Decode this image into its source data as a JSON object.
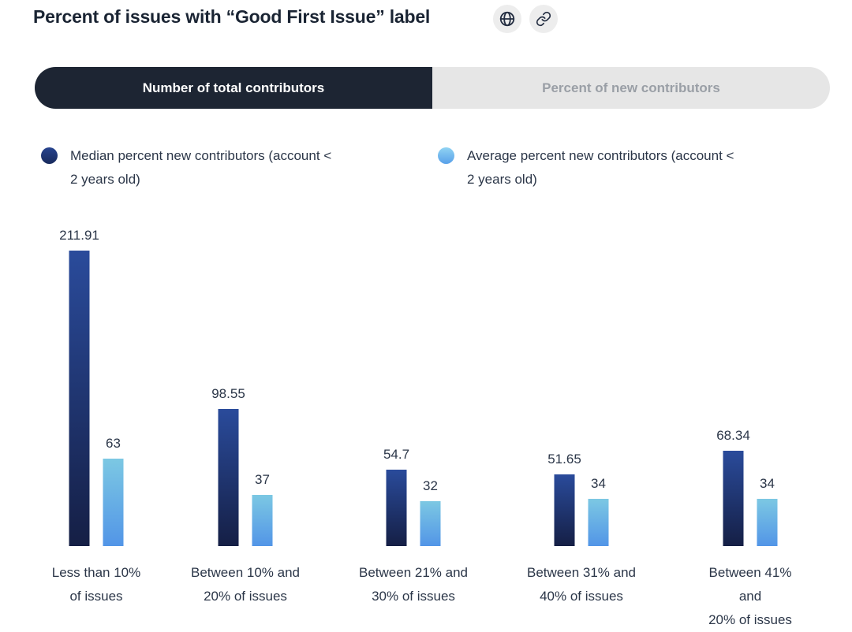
{
  "header": {
    "title": "Percent of issues with “Good First Issue” label",
    "buttons": [
      {
        "icon": "globe-icon"
      },
      {
        "icon": "link-icon"
      }
    ]
  },
  "tabs": {
    "items": [
      {
        "label": "Number of total contributors",
        "selected": true
      },
      {
        "label": "Percent of new contributors",
        "selected": false
      }
    ]
  },
  "legend": {
    "items": [
      {
        "label": "Median percent new contributors (account < 2 years old)",
        "label_lines": [
          "Median percent new contributors (account <",
          "2 years old)"
        ],
        "color": "#1d3a7e"
      },
      {
        "label": "Average percent new contributors (account < 2 years old)",
        "label_lines": [
          "Average percent new contributors (account <",
          "2 years old)"
        ],
        "color": "#6fc0ee"
      }
    ]
  },
  "theme": {
    "tab_selected_bg": "#1d2533",
    "tab_unselected_bg": "#e6e6e6",
    "tab_unselected_text": "#9a9fa6",
    "text_color": "#2b3648",
    "icon_button_bg": "#ededed"
  },
  "chart_data": {
    "type": "bar",
    "title": "Percent of issues with “Good First Issue” label",
    "categories": [
      "Less than 10% of issues",
      "Between 10% and 20% of issues",
      "Between 21% and 30% of issues",
      "Between 31% and 40% of issues",
      "Between 41% and 20% of issues"
    ],
    "category_lines": [
      [
        "Less than 10%",
        "of issues"
      ],
      [
        "Between 10% and",
        "20% of issues"
      ],
      [
        "Between 21% and",
        "30% of issues"
      ],
      [
        "Between 31% and",
        "40% of issues"
      ],
      [
        "Between 41% and",
        "20% of issues"
      ]
    ],
    "series": [
      {
        "name": "Median percent new contributors (account < 2 years old)",
        "values": [
          211.91,
          98.55,
          54.7,
          51.65,
          68.34
        ],
        "gradient": [
          "#2a4b9b",
          "#151f45"
        ]
      },
      {
        "name": "Average percent new contributors (account < 2 years old)",
        "values": [
          63,
          37,
          32,
          34,
          34
        ],
        "gradient": [
          "#7cc8e3",
          "#5295e7"
        ]
      }
    ],
    "value_labels": [
      [
        "211.91",
        "98.55",
        "54.7",
        "51.65",
        "68.34"
      ],
      [
        "63",
        "37",
        "32",
        "34",
        "34"
      ]
    ],
    "ylim": [
      0,
      225
    ],
    "grid": false,
    "axis_lines": false,
    "legend_position": "top",
    "value_labels_shown": true
  }
}
